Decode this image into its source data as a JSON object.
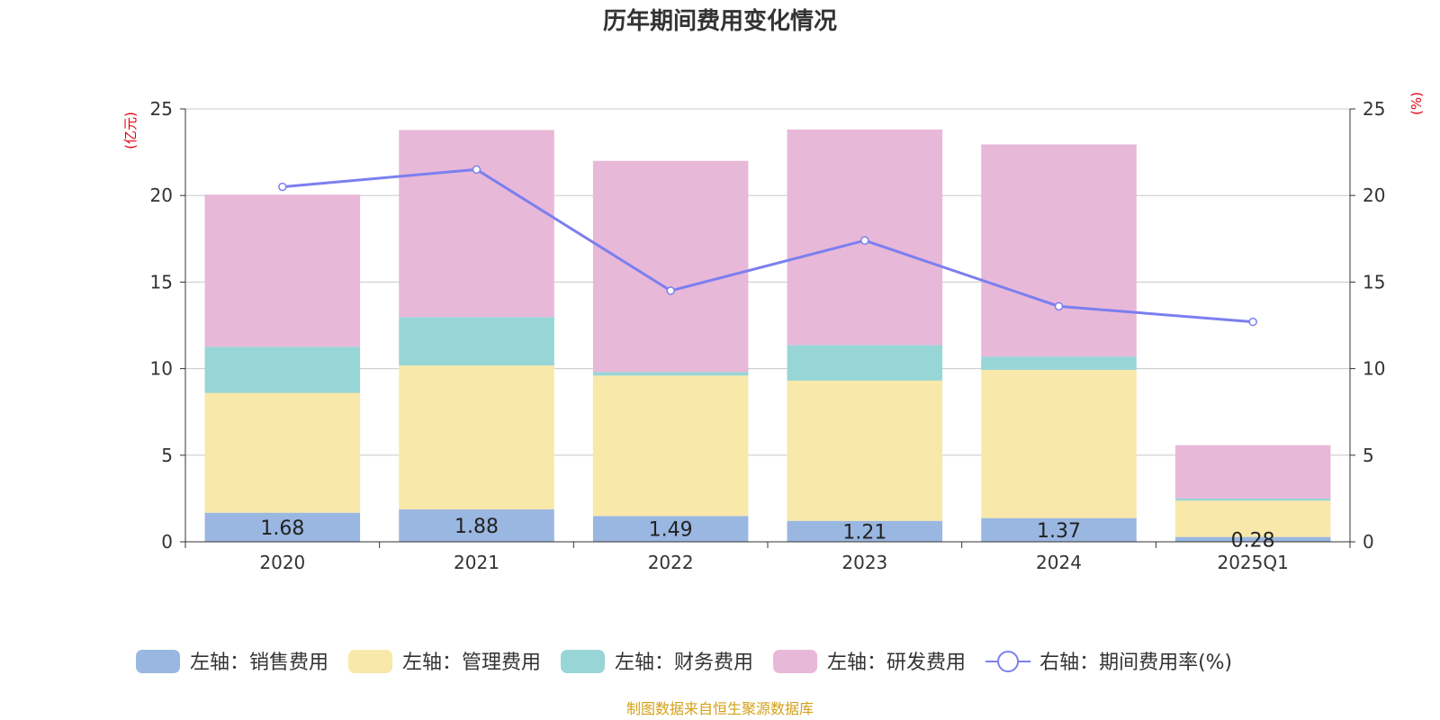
{
  "chart_data": {
    "type": "bar",
    "title": "历年期间费用变化情况",
    "categories": [
      "2020",
      "2021",
      "2022",
      "2023",
      "2024",
      "2025Q1"
    ],
    "left_axis": {
      "label": "(亿元)",
      "ylim": [
        0,
        25
      ],
      "ticks": [
        0,
        5,
        10,
        15,
        20,
        25
      ]
    },
    "right_axis": {
      "label": "(%)",
      "ylim": [
        0,
        25
      ],
      "ticks": [
        0,
        5,
        10,
        15,
        20,
        25
      ]
    },
    "series": [
      {
        "name": "左轴：销售费用",
        "axis": "left",
        "stacked": true,
        "color": "#9ab7e1",
        "values": [
          1.68,
          1.88,
          1.49,
          1.21,
          1.37,
          0.28
        ],
        "labels": [
          "1.68",
          "1.88",
          "1.49",
          "1.21",
          "1.37",
          "0.28"
        ]
      },
      {
        "name": "左轴：管理费用",
        "axis": "left",
        "stacked": true,
        "color": "#f8e8a9",
        "values": [
          6.92,
          8.3,
          8.11,
          8.1,
          8.56,
          2.1
        ]
      },
      {
        "name": "左轴：财务费用",
        "axis": "left",
        "stacked": true,
        "color": "#98d5d6",
        "values": [
          2.67,
          2.8,
          0.2,
          2.05,
          0.77,
          0.12
        ]
      },
      {
        "name": "左轴：研发费用",
        "axis": "left",
        "stacked": true,
        "color": "#e8b8d8",
        "values": [
          8.78,
          10.8,
          12.2,
          12.45,
          12.25,
          3.08
        ]
      },
      {
        "name": "右轴：期间费用率(%)",
        "axis": "right",
        "type": "line",
        "color": "#7b7ff0",
        "values": [
          20.5,
          21.5,
          14.5,
          17.4,
          13.6,
          12.7
        ]
      }
    ],
    "legend_position": "bottom",
    "grid": true,
    "source": "制图数据来自恒生聚源数据库"
  }
}
